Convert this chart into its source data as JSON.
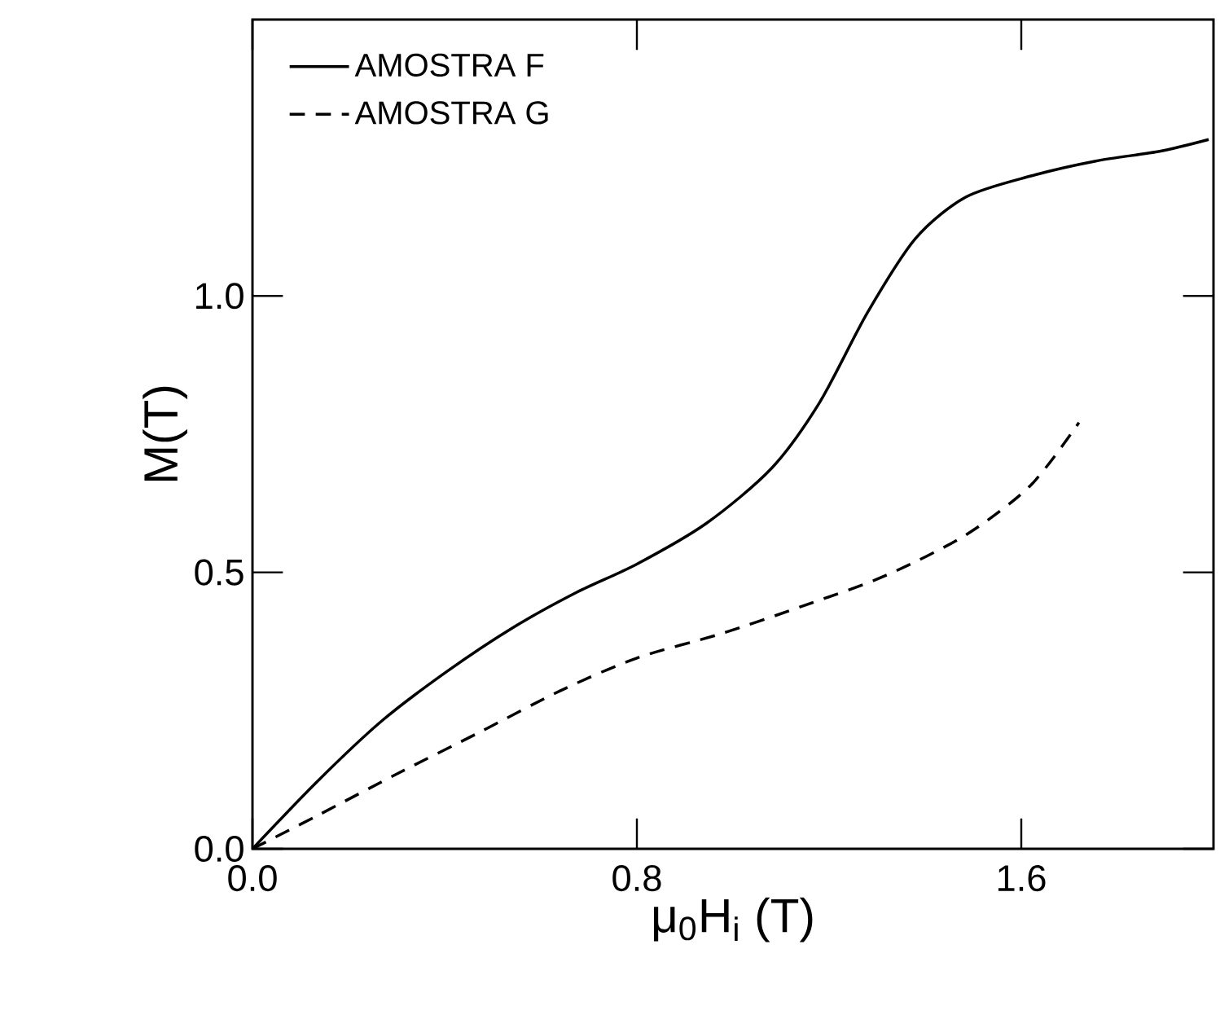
{
  "chart_data": {
    "type": "line",
    "xlabel": "μ$_{0}$H$_{i}$ (T)",
    "ylabel": "M(T)",
    "xlim": [
      0,
      2.0
    ],
    "ylim": [
      0,
      1.5
    ],
    "xticks": [
      {
        "value": 0,
        "label": "0.0"
      },
      {
        "value": 0.8,
        "label": "0.8"
      },
      {
        "value": 1.6,
        "label": "1.6"
      }
    ],
    "yticks": [
      {
        "value": 0,
        "label": "0.0"
      },
      {
        "value": 0.5,
        "label": "0.5"
      },
      {
        "value": 1.0,
        "label": "1.0"
      }
    ],
    "legend": "top left",
    "grid": false,
    "marker": "none",
    "series": [
      {
        "name": "AMOSTRA F",
        "color": "#000000",
        "line_style": "solid",
        "x": [
          0,
          0.135,
          0.27,
          0.405,
          0.54,
          0.675,
          0.8,
          0.945,
          1.08,
          1.18,
          1.28,
          1.38,
          1.485,
          1.62,
          1.755,
          1.89,
          1.99
        ],
        "values": [
          0,
          0.122,
          0.232,
          0.321,
          0.399,
          0.464,
          0.515,
          0.589,
          0.688,
          0.807,
          0.97,
          1.104,
          1.179,
          1.217,
          1.244,
          1.262,
          1.283
        ]
      },
      {
        "name": "AMOSTRA G",
        "color": "#000000",
        "line_style": "dashed",
        "x": [
          0,
          0.135,
          0.304,
          0.473,
          0.641,
          0.8,
          0.979,
          1.148,
          1.317,
          1.485,
          1.62,
          1.72
        ],
        "values": [
          0,
          0.06,
          0.137,
          0.211,
          0.286,
          0.345,
          0.39,
          0.44,
          0.494,
          0.568,
          0.658,
          0.771
        ]
      }
    ]
  }
}
